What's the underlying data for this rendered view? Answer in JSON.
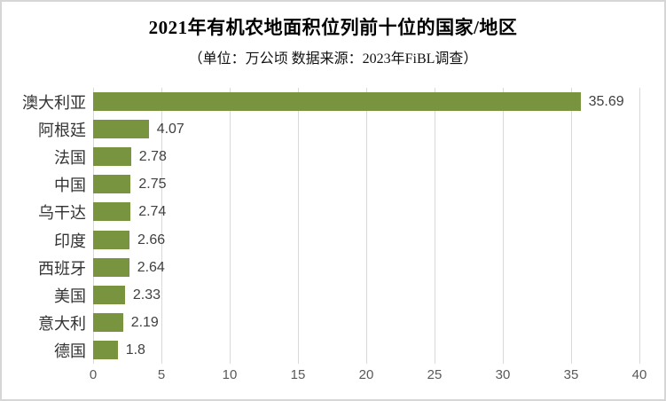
{
  "chart_data": {
    "type": "bar",
    "orientation": "horizontal",
    "title": "2021年有机农地面积位列前十位的国家/地区",
    "subtitle": "（单位：万公顷 数据来源：2023年FiBL调查）",
    "unit": "万公顷",
    "source": "2023年FiBL调查",
    "categories": [
      "澳大利亚",
      "阿根廷",
      "法国",
      "中国",
      "乌干达",
      "印度",
      "西班牙",
      "美国",
      "意大利",
      "德国"
    ],
    "values": [
      35.69,
      4.07,
      2.78,
      2.75,
      2.74,
      2.66,
      2.64,
      2.33,
      2.19,
      1.8
    ],
    "value_labels": [
      "35.69",
      "4.07",
      "2.78",
      "2.75",
      "2.74",
      "2.66",
      "2.64",
      "2.33",
      "2.19",
      "1.8"
    ],
    "x_ticks": [
      "0",
      "5",
      "10",
      "15",
      "20",
      "25",
      "30",
      "35",
      "40"
    ],
    "xlim": [
      0,
      40
    ],
    "xlabel": "",
    "ylabel": "",
    "grid": "vertical",
    "legend": "none",
    "bar_color": "#78943e",
    "gridline_color": "#d9d9d9",
    "title_color": "#000000",
    "axis_label_color": "#595959"
  }
}
